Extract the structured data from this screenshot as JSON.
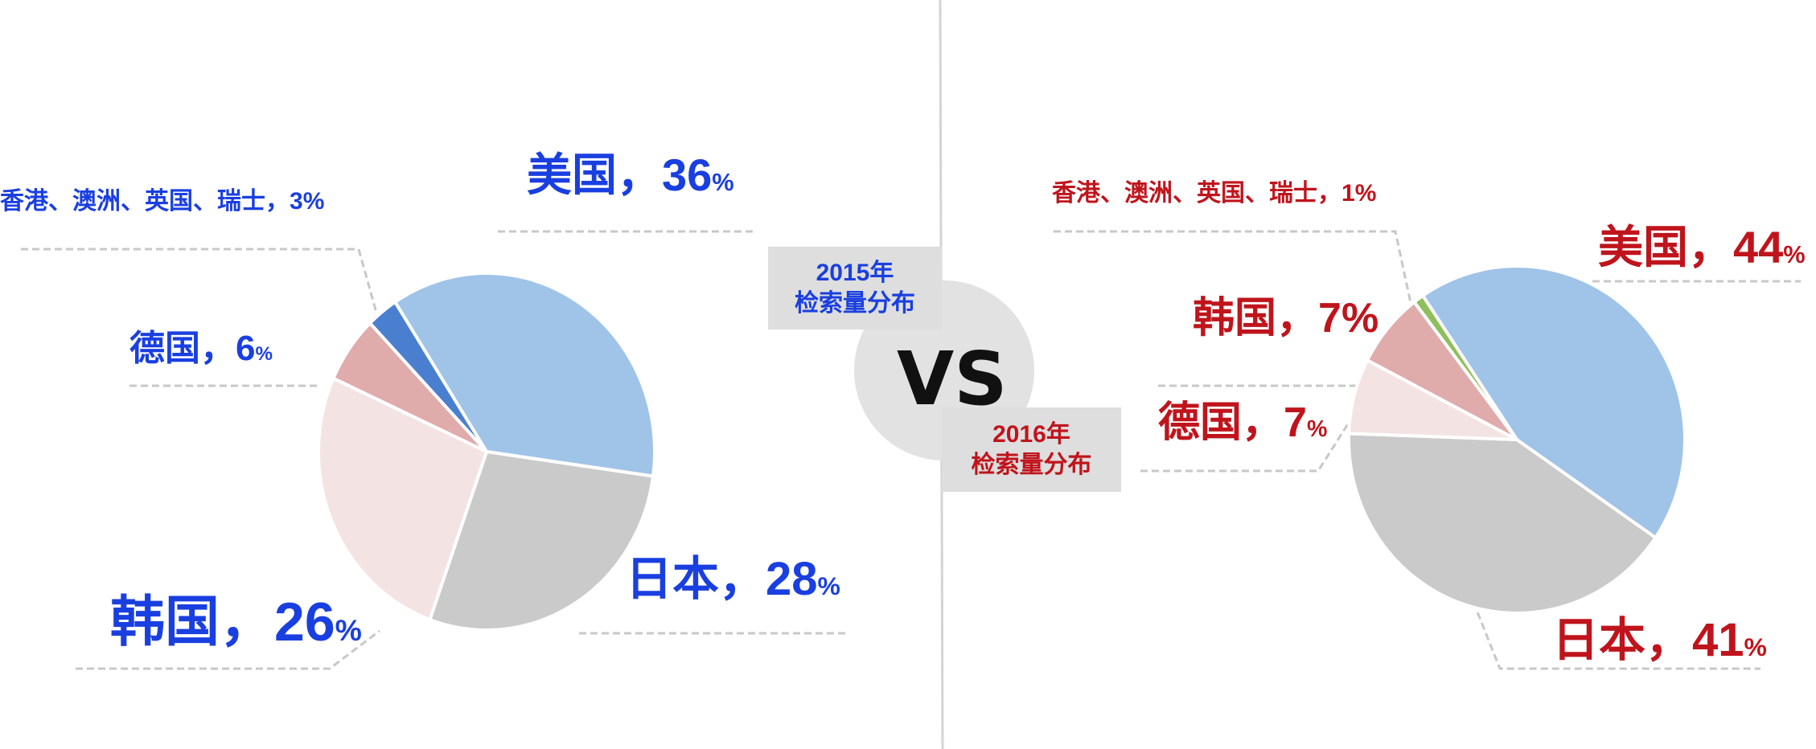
{
  "colors": {
    "label_2015": "#1a3fe0",
    "label_2016": "#c0141c",
    "usa": "#a0c3e8",
    "japan": "#cacaca",
    "light_pink": "#f4e3e3",
    "dark_pink": "#e0abab",
    "others_blue": "#4a7fcf",
    "others_green": "#8fbf5a"
  },
  "center": {
    "vs": "VS",
    "box_2015": {
      "year": "2015年",
      "title": "检索量分布"
    },
    "box_2016": {
      "year": "2016年",
      "title": "检索量分布"
    }
  },
  "chart_data": [
    {
      "type": "pie",
      "title": "2015年检索量分布",
      "sep": "，",
      "unit": "%",
      "slices": [
        {
          "name": "美国",
          "value": 36,
          "color": "#a0c3e8"
        },
        {
          "name": "日本",
          "value": 28,
          "color": "#cacaca"
        },
        {
          "name": "韩国",
          "value": 26,
          "color": "#f4e3e3"
        },
        {
          "name": "德国",
          "value": 6,
          "color": "#e0abab"
        },
        {
          "name": "香港、澳洲、英国、瑞士",
          "value": 3,
          "color": "#4a7fcf"
        }
      ]
    },
    {
      "type": "pie",
      "title": "2016年检索量分布",
      "sep": "，",
      "unit": "%",
      "slices": [
        {
          "name": "美国",
          "value": 44,
          "color": "#a0c3e8"
        },
        {
          "name": "日本",
          "value": 41,
          "color": "#cacaca"
        },
        {
          "name": "德国",
          "value": 7,
          "color": "#f4e3e3"
        },
        {
          "name": "韩国",
          "value": 7,
          "color": "#e0abab"
        },
        {
          "name": "香港、澳洲、英国、瑞士",
          "value": 1,
          "color": "#8fbf5a"
        }
      ]
    }
  ]
}
